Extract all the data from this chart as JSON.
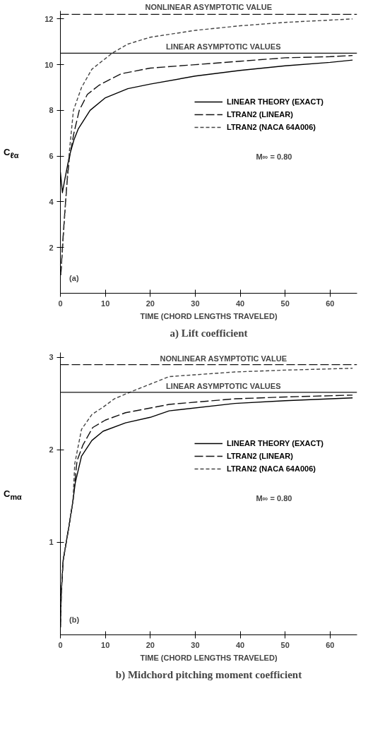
{
  "chart_data": [
    {
      "type": "line",
      "title": "a) Lift coefficient",
      "xlabel": "TIME (CHORD LENGTHS TRAVELED)",
      "ylabel": "C$_{ℓα}$",
      "xlim": [
        0,
        66
      ],
      "ylim": [
        0,
        12.35
      ],
      "xticks": [
        0,
        10,
        20,
        30,
        40,
        50,
        60
      ],
      "yticks": [
        2,
        4,
        6,
        8,
        10,
        12
      ],
      "grid": false,
      "legend": "right",
      "series": [
        {
          "name": "LINEAR THEORY (EXACT)",
          "color": "#000000",
          "line_style": "solid",
          "x": [
            0,
            0.45,
            1,
            2,
            3,
            4,
            6.6,
            10,
            15,
            20,
            30,
            40,
            50,
            60,
            65
          ],
          "values": [
            5.3,
            4.4,
            5.0,
            6.0,
            6.7,
            7.2,
            8.0,
            8.55,
            8.95,
            9.15,
            9.5,
            9.75,
            9.95,
            10.1,
            10.2
          ]
        },
        {
          "name": "LTRAN2 (LINEAR)",
          "color": "#111111",
          "line_style": "dashed",
          "x": [
            0.1,
            0.5,
            1,
            1.5,
            2,
            3,
            4.2,
            6,
            8.6,
            10.5,
            13.5,
            20,
            30,
            40,
            50,
            60,
            65
          ],
          "values": [
            0.8,
            2.2,
            3.6,
            4.9,
            5.9,
            7.0,
            8.0,
            8.7,
            9.1,
            9.3,
            9.6,
            9.85,
            10.0,
            10.15,
            10.3,
            10.35,
            10.4
          ]
        },
        {
          "name": "LTRAN2 (NACA 64A006)",
          "color": "#444444",
          "line_style": "dotted",
          "x": [
            0.1,
            0.5,
            1,
            1.5,
            2,
            2.9,
            4.7,
            7,
            11.5,
            15,
            20,
            30,
            40,
            50,
            60,
            65
          ],
          "values": [
            0.8,
            2.0,
            3.5,
            5.0,
            6.2,
            8.0,
            9.0,
            9.8,
            10.5,
            10.9,
            11.2,
            11.5,
            11.7,
            11.85,
            11.95,
            12.0
          ]
        }
      ],
      "ref_lines": [
        {
          "axis": "y",
          "value": 12.2,
          "label": "NONLINEAR ASYMPTOTIC VALUE",
          "line_style": "dashed",
          "color": "#111111"
        },
        {
          "axis": "y",
          "value": 10.5,
          "label": "LINEAR ASYMPTOTIC VALUES",
          "line_style": "solid",
          "color": "#111111"
        }
      ],
      "annotations": [
        "M∞ = 0.80",
        "(a)"
      ]
    },
    {
      "type": "line",
      "title": "b) Midchord pitching moment coefficient",
      "xlabel": "TIME (CHORD LENGTHS TRAVELED)",
      "ylabel": "C$_{mα}$",
      "xlim": [
        0,
        66
      ],
      "ylim": [
        0,
        3.05
      ],
      "xticks": [
        0,
        10,
        20,
        30,
        40,
        50,
        60
      ],
      "yticks": [
        1,
        2,
        3
      ],
      "grid": false,
      "legend": "right",
      "series": [
        {
          "name": "LINEAR THEORY (EXACT)",
          "color": "#000000",
          "line_style": "solid",
          "x": [
            0,
            0.2,
            0.6,
            1.3,
            2,
            2.8,
            3.3,
            4.7,
            7,
            9.5,
            14.5,
            20,
            24.2,
            38.8,
            50,
            65
          ],
          "values": [
            0.08,
            0.45,
            0.8,
            1.0,
            1.2,
            1.45,
            1.64,
            1.93,
            2.1,
            2.2,
            2.29,
            2.35,
            2.42,
            2.5,
            2.53,
            2.56
          ]
        },
        {
          "name": "LTRAN2 (LINEAR)",
          "color": "#111111",
          "line_style": "dashed",
          "x": [
            0,
            0.2,
            0.6,
            1.3,
            2,
            2.8,
            3.7,
            5,
            7.2,
            10,
            14.5,
            24.2,
            38.8,
            50,
            65
          ],
          "values": [
            0.08,
            0.45,
            0.8,
            1.0,
            1.2,
            1.45,
            1.88,
            2.05,
            2.24,
            2.32,
            2.4,
            2.49,
            2.55,
            2.57,
            2.59
          ]
        },
        {
          "name": "LTRAN2 (NACA 64A006)",
          "color": "#444444",
          "line_style": "dotted",
          "x": [
            0,
            0.2,
            0.6,
            1.3,
            2,
            2.8,
            3.2,
            4.7,
            7,
            9.5,
            12,
            15.9,
            24.2,
            38.8,
            50,
            65
          ],
          "values": [
            0.08,
            0.45,
            0.8,
            1.0,
            1.2,
            1.45,
            1.85,
            2.22,
            2.38,
            2.46,
            2.55,
            2.63,
            2.79,
            2.84,
            2.86,
            2.88
          ]
        }
      ],
      "ref_lines": [
        {
          "axis": "y",
          "value": 2.92,
          "label": "NONLINEAR ASYMPTOTIC VALUE",
          "line_style": "dashed",
          "color": "#111111"
        },
        {
          "axis": "y",
          "value": 2.62,
          "label": "LINEAR ASYMPTOTIC VALUES",
          "line_style": "solid",
          "color": "#111111"
        }
      ],
      "annotations": [
        "M∞ = 0.80",
        "(b)"
      ]
    }
  ]
}
